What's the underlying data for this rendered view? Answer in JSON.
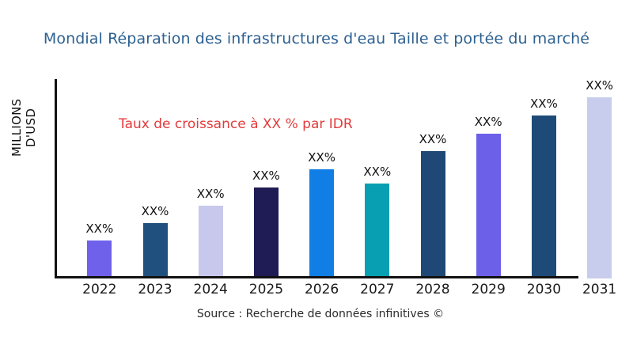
{
  "title": "Mondial Réparation des infrastructures d'eau Taille et portée du marché",
  "annotation": "Taux de croissance à XX % par IDR",
  "ylabel": "MILLIONS D'USD",
  "source": "Source : Recherche de données infinitives ©",
  "colors": {
    "title_text": "#2d6191",
    "annotation_text": "#e23b3b",
    "axis": "#111111",
    "label_text": "#111111"
  },
  "chart_data": {
    "type": "bar",
    "title": "Mondial Réparation des infrastructures d'eau Taille et portée du marché",
    "xlabel": "",
    "ylabel": "MILLIONS D'USD",
    "annotation": "Taux de croissance à XX % par IDR",
    "source": "Source : Recherche de données infinitives ©",
    "grid": false,
    "legend": false,
    "categories": [
      "2022",
      "2023",
      "2024",
      "2025",
      "2026",
      "2027",
      "2028",
      "2029",
      "2030",
      "2031"
    ],
    "value_labels": [
      "XX%",
      "XX%",
      "XX%",
      "XX%",
      "XX%",
      "XX%",
      "XX%",
      "XX%",
      "XX%",
      "XX%"
    ],
    "values_note": "numeric values masked in source chart as XX%; relative bar heights (px) below",
    "values": [
      48,
      70,
      92,
      115,
      138,
      120,
      161,
      183,
      206,
      229
    ],
    "bar_colors": [
      "#6f61ea",
      "#20507e",
      "#c8c8ec",
      "#1f1b55",
      "#107ee5",
      "#089fb2",
      "#1f4876",
      "#6c5fe8",
      "#1e4a78",
      "#c8cdee"
    ]
  }
}
